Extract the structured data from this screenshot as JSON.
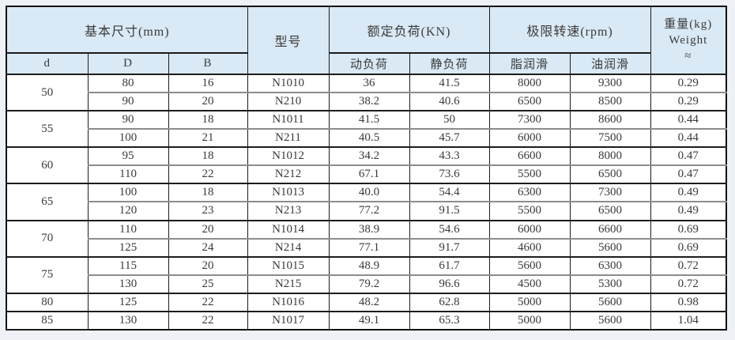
{
  "header": {
    "basic_dims": "基本尺寸(mm)",
    "col_d": "d",
    "col_D": "D",
    "col_B": "B",
    "model": "型号",
    "rated_load": "额定负荷(KN)",
    "col_dynamic": "动负荷",
    "col_static": "静负荷",
    "limit_speed": "极限转速(rpm)",
    "col_grease": "脂润滑",
    "col_oil": "油润滑",
    "weight_cn": "重量(kg)",
    "weight_en": "Weight",
    "weight_approx": "≈"
  },
  "chart_data": {
    "type": "table",
    "columns": [
      "d",
      "D",
      "B",
      "型号",
      "动负荷",
      "静负荷",
      "脂润滑",
      "油润滑",
      "重量(kg)"
    ],
    "column_groups": [
      {
        "label": "基本尺寸(mm)",
        "columns": [
          "d",
          "D",
          "B"
        ]
      },
      {
        "label": "型号",
        "columns": [
          "型号"
        ]
      },
      {
        "label": "额定负荷(KN)",
        "columns": [
          "动负荷",
          "静负荷"
        ]
      },
      {
        "label": "极限转速(rpm)",
        "columns": [
          "脂润滑",
          "油润滑"
        ]
      },
      {
        "label": "重量(kg) Weight ≈",
        "columns": [
          "重量(kg)"
        ]
      }
    ],
    "rows": [
      [
        "50",
        "80",
        "16",
        "N1010",
        "36",
        "41.5",
        "8000",
        "9300",
        "0.29"
      ],
      [
        "50",
        "90",
        "20",
        "N210",
        "38.2",
        "40.6",
        "6500",
        "8500",
        "0.29"
      ],
      [
        "55",
        "90",
        "18",
        "N1011",
        "41.5",
        "50",
        "7300",
        "8600",
        "0.44"
      ],
      [
        "55",
        "100",
        "21",
        "N211",
        "40.5",
        "45.7",
        "6000",
        "7500",
        "0.44"
      ],
      [
        "60",
        "95",
        "18",
        "N1012",
        "34.2",
        "43.3",
        "6600",
        "8000",
        "0.47"
      ],
      [
        "60",
        "110",
        "22",
        "N212",
        "67.1",
        "73.6",
        "5500",
        "6500",
        "0.47"
      ],
      [
        "65",
        "100",
        "18",
        "N1013",
        "40.0",
        "54.4",
        "6300",
        "7300",
        "0.49"
      ],
      [
        "65",
        "120",
        "23",
        "N213",
        "77.2",
        "91.5",
        "5500",
        "6500",
        "0.49"
      ],
      [
        "70",
        "110",
        "20",
        "N1014",
        "38.9",
        "54.6",
        "6000",
        "6600",
        "0.69"
      ],
      [
        "70",
        "125",
        "24",
        "N214",
        "77.1",
        "91.7",
        "4600",
        "5600",
        "0.69"
      ],
      [
        "75",
        "115",
        "20",
        "N1015",
        "48.9",
        "61.7",
        "5600",
        "6300",
        "0.72"
      ],
      [
        "75",
        "130",
        "25",
        "N215",
        "79.2",
        "96.6",
        "4500",
        "5300",
        "0.72"
      ],
      [
        "80",
        "125",
        "22",
        "N1016",
        "48.2",
        "62.8",
        "5000",
        "5600",
        "0.98"
      ],
      [
        "85",
        "130",
        "22",
        "N1017",
        "49.1",
        "65.3",
        "5000",
        "5600",
        "1.04"
      ]
    ]
  },
  "colors": {
    "header_bg": "#d9e9f5",
    "page_bg": "#eef1f6",
    "row_bg": "#ffffff",
    "border_dark": "#1c1c1c",
    "border_light": "#8c8c8c",
    "text": "#3a3a3a"
  }
}
